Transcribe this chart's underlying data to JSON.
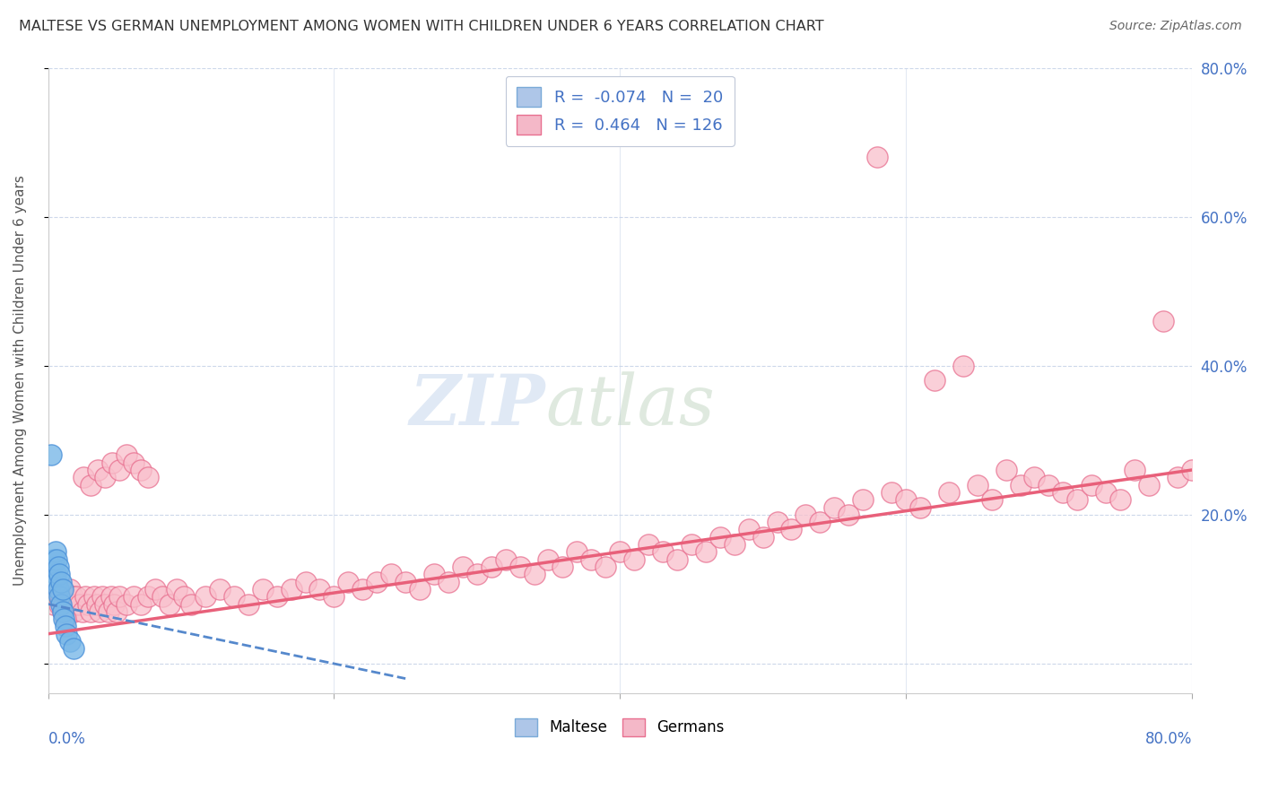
{
  "title": "MALTESE VS GERMAN UNEMPLOYMENT AMONG WOMEN WITH CHILDREN UNDER 6 YEARS CORRELATION CHART",
  "source": "Source: ZipAtlas.com",
  "ylabel": "Unemployment Among Women with Children Under 6 years",
  "legend_entry1": {
    "color_face": "#aec6e8",
    "color_edge": "#7aaad8",
    "R": "-0.074",
    "N": "20"
  },
  "legend_entry2": {
    "color_face": "#f4b8c8",
    "color_edge": "#e87090",
    "R": "0.464",
    "N": "126"
  },
  "legend_labels": [
    "Maltese",
    "Germans"
  ],
  "maltese_scatter_color": "#7ab8e8",
  "maltese_edge_color": "#4a90d9",
  "german_scatter_color": "#f9c0cc",
  "german_edge_color": "#e87090",
  "maltese_trend_color": "#5588cc",
  "german_trend_color": "#e8607a",
  "xlim": [
    0.0,
    0.8
  ],
  "ylim": [
    -0.04,
    0.75
  ],
  "background_color": "#ffffff",
  "grid_color": "#c8d4e8",
  "title_color": "#333333",
  "source_color": "#666666",
  "axis_label_color": "#4472c4",
  "ylabel_color": "#555555",
  "right_yticks": [
    0.0,
    0.2,
    0.4,
    0.6,
    0.8
  ],
  "right_yticklabels": [
    "",
    "20.0%",
    "40.0%",
    "60.0%",
    "80.0%"
  ],
  "maltese_x": [
    0.002,
    0.003,
    0.004,
    0.005,
    0.005,
    0.006,
    0.006,
    0.007,
    0.007,
    0.008,
    0.008,
    0.009,
    0.009,
    0.01,
    0.01,
    0.011,
    0.012,
    0.013,
    0.015,
    0.018
  ],
  "maltese_y": [
    0.28,
    0.13,
    0.14,
    0.12,
    0.15,
    0.11,
    0.14,
    0.1,
    0.13,
    0.09,
    0.12,
    0.08,
    0.11,
    0.07,
    0.1,
    0.06,
    0.05,
    0.04,
    0.03,
    0.02
  ],
  "german_x": [
    0.002,
    0.003,
    0.004,
    0.005,
    0.006,
    0.007,
    0.008,
    0.009,
    0.01,
    0.011,
    0.012,
    0.013,
    0.014,
    0.015,
    0.016,
    0.017,
    0.018,
    0.019,
    0.02,
    0.022,
    0.024,
    0.026,
    0.028,
    0.03,
    0.032,
    0.034,
    0.036,
    0.038,
    0.04,
    0.042,
    0.044,
    0.046,
    0.048,
    0.05,
    0.055,
    0.06,
    0.065,
    0.07,
    0.075,
    0.08,
    0.085,
    0.09,
    0.095,
    0.1,
    0.11,
    0.12,
    0.13,
    0.14,
    0.15,
    0.16,
    0.17,
    0.18,
    0.19,
    0.2,
    0.21,
    0.22,
    0.23,
    0.24,
    0.25,
    0.26,
    0.27,
    0.28,
    0.29,
    0.3,
    0.31,
    0.32,
    0.33,
    0.34,
    0.35,
    0.36,
    0.37,
    0.38,
    0.39,
    0.4,
    0.41,
    0.42,
    0.43,
    0.44,
    0.45,
    0.46,
    0.47,
    0.48,
    0.49,
    0.5,
    0.51,
    0.52,
    0.53,
    0.54,
    0.55,
    0.56,
    0.57,
    0.58,
    0.59,
    0.6,
    0.61,
    0.62,
    0.63,
    0.64,
    0.65,
    0.66,
    0.67,
    0.68,
    0.69,
    0.7,
    0.71,
    0.72,
    0.73,
    0.74,
    0.75,
    0.76,
    0.77,
    0.78,
    0.79,
    0.8,
    0.025,
    0.03,
    0.035,
    0.04,
    0.045,
    0.05,
    0.055,
    0.06,
    0.065,
    0.07,
    0.01,
    0.012
  ],
  "german_y": [
    0.09,
    0.1,
    0.08,
    0.11,
    0.09,
    0.1,
    0.08,
    0.09,
    0.1,
    0.08,
    0.07,
    0.09,
    0.08,
    0.1,
    0.08,
    0.09,
    0.07,
    0.08,
    0.09,
    0.08,
    0.07,
    0.09,
    0.08,
    0.07,
    0.09,
    0.08,
    0.07,
    0.09,
    0.08,
    0.07,
    0.09,
    0.08,
    0.07,
    0.09,
    0.08,
    0.09,
    0.08,
    0.09,
    0.1,
    0.09,
    0.08,
    0.1,
    0.09,
    0.08,
    0.09,
    0.1,
    0.09,
    0.08,
    0.1,
    0.09,
    0.1,
    0.11,
    0.1,
    0.09,
    0.11,
    0.1,
    0.11,
    0.12,
    0.11,
    0.1,
    0.12,
    0.11,
    0.13,
    0.12,
    0.13,
    0.14,
    0.13,
    0.12,
    0.14,
    0.13,
    0.15,
    0.14,
    0.13,
    0.15,
    0.14,
    0.16,
    0.15,
    0.14,
    0.16,
    0.15,
    0.17,
    0.16,
    0.18,
    0.17,
    0.19,
    0.18,
    0.2,
    0.19,
    0.21,
    0.2,
    0.22,
    0.68,
    0.23,
    0.22,
    0.21,
    0.38,
    0.23,
    0.4,
    0.24,
    0.22,
    0.26,
    0.24,
    0.25,
    0.24,
    0.23,
    0.22,
    0.24,
    0.23,
    0.22,
    0.26,
    0.24,
    0.46,
    0.25,
    0.26,
    0.25,
    0.24,
    0.26,
    0.25,
    0.27,
    0.26,
    0.28,
    0.27,
    0.26,
    0.25,
    0.07,
    0.06
  ],
  "german_trend_x": [
    0.0,
    0.8
  ],
  "german_trend_y": [
    0.04,
    0.26
  ],
  "maltese_trend_x": [
    0.0,
    0.25
  ],
  "maltese_trend_y": [
    0.08,
    -0.02
  ]
}
